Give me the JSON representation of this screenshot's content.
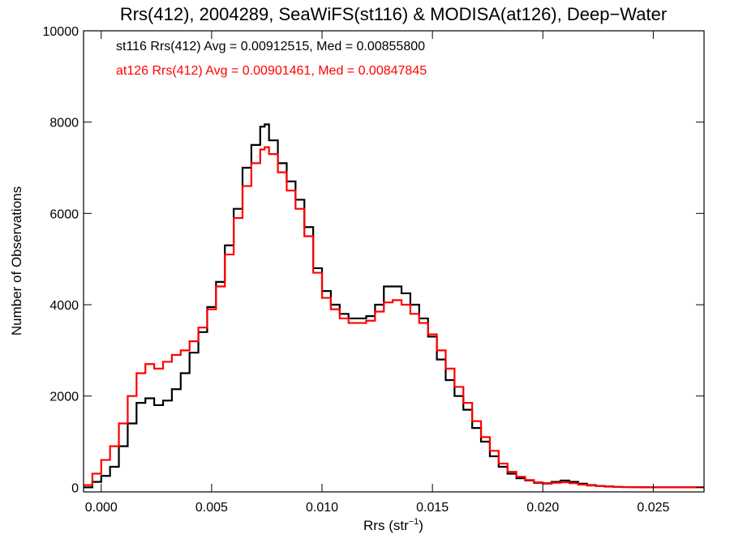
{
  "chart_data": {
    "type": "line",
    "title": "Rrs(412), 2004289, SeaWiFS(st116) & MODISA(at126), Deep−Water",
    "xlabel": "Rrs (str",
    "xlabel_sup": "−1",
    "xlabel_close": ")",
    "ylabel": "Number of Observations",
    "xlim": [
      -0.0008,
      0.0273
    ],
    "ylim": [
      -100,
      10000
    ],
    "xticks": [
      0.0,
      0.005,
      0.01,
      0.015,
      0.02,
      0.025
    ],
    "xtick_labels": [
      "0.000",
      "0.005",
      "0.010",
      "0.015",
      "0.020",
      "0.025"
    ],
    "yticks": [
      0,
      2000,
      4000,
      6000,
      8000,
      10000
    ],
    "ytick_labels": [
      "0",
      "2000",
      "4000",
      "6000",
      "8000",
      "10000"
    ],
    "grid": false,
    "legend_position": "top-left",
    "series": [
      {
        "name": "st116 Rrs(412) Avg = 0.00912515, Med = 0.00855800",
        "color": "#000000",
        "x": [
          -0.0008,
          -0.0004,
          0.0,
          0.0004,
          0.0008,
          0.0012,
          0.0016,
          0.002,
          0.0024,
          0.0028,
          0.0032,
          0.0036,
          0.004,
          0.0044,
          0.0048,
          0.0052,
          0.0056,
          0.006,
          0.0064,
          0.0068,
          0.0072,
          0.0074,
          0.0076,
          0.008,
          0.0084,
          0.0088,
          0.0092,
          0.0096,
          0.01,
          0.0104,
          0.0108,
          0.0112,
          0.0116,
          0.012,
          0.0124,
          0.0128,
          0.0132,
          0.0136,
          0.014,
          0.0144,
          0.0148,
          0.0152,
          0.0156,
          0.016,
          0.0164,
          0.0168,
          0.0172,
          0.0176,
          0.018,
          0.0184,
          0.0188,
          0.0192,
          0.0196,
          0.02,
          0.0204,
          0.0208,
          0.0212,
          0.0216,
          0.022,
          0.0224,
          0.0228,
          0.0232,
          0.0236,
          0.024,
          0.0244,
          0.0248,
          0.0252,
          0.0256,
          0.026,
          0.0264,
          0.0268,
          0.0273
        ],
        "y": [
          0,
          120,
          250,
          450,
          900,
          1400,
          1850,
          1950,
          1800,
          1900,
          2150,
          2500,
          2950,
          3400,
          3950,
          4500,
          5300,
          6100,
          7000,
          7500,
          7900,
          7950,
          7600,
          7100,
          6700,
          6300,
          5700,
          4800,
          4300,
          4000,
          3800,
          3700,
          3700,
          3750,
          4000,
          4400,
          4400,
          4250,
          4000,
          3700,
          3300,
          2800,
          2350,
          2000,
          1700,
          1300,
          1000,
          680,
          450,
          300,
          200,
          150,
          100,
          90,
          120,
          150,
          120,
          80,
          50,
          30,
          20,
          10,
          5,
          3,
          2,
          1,
          0,
          0,
          0,
          0,
          0,
          0
        ]
      },
      {
        "name": "at126 Rrs(412) Avg = 0.00901461, Med = 0.00847845",
        "color": "#ff0000",
        "x": [
          -0.0008,
          -0.0004,
          0.0,
          0.0004,
          0.0008,
          0.0012,
          0.0016,
          0.002,
          0.0024,
          0.0028,
          0.0032,
          0.0036,
          0.004,
          0.0044,
          0.0048,
          0.0052,
          0.0056,
          0.006,
          0.0064,
          0.0068,
          0.0072,
          0.0074,
          0.0076,
          0.008,
          0.0084,
          0.0088,
          0.0092,
          0.0096,
          0.01,
          0.0104,
          0.0108,
          0.0112,
          0.0116,
          0.012,
          0.0124,
          0.0128,
          0.0132,
          0.0136,
          0.014,
          0.0144,
          0.0148,
          0.0152,
          0.0156,
          0.016,
          0.0164,
          0.0168,
          0.0172,
          0.0176,
          0.018,
          0.0184,
          0.0188,
          0.0192,
          0.0196,
          0.02,
          0.0204,
          0.0208,
          0.0212,
          0.0216,
          0.022,
          0.0224,
          0.0228,
          0.0232,
          0.0236,
          0.024,
          0.0244,
          0.0248,
          0.0252,
          0.0256,
          0.026,
          0.0264,
          0.0268,
          0.0273
        ],
        "y": [
          50,
          300,
          600,
          900,
          1400,
          2000,
          2500,
          2700,
          2600,
          2750,
          2900,
          3000,
          3200,
          3500,
          3900,
          4400,
          5100,
          5900,
          6600,
          7100,
          7400,
          7450,
          7300,
          6900,
          6500,
          6100,
          5500,
          4700,
          4150,
          3900,
          3700,
          3600,
          3600,
          3650,
          3850,
          4050,
          4100,
          4000,
          3800,
          3600,
          3350,
          3000,
          2600,
          2200,
          1850,
          1450,
          1100,
          800,
          520,
          340,
          230,
          160,
          110,
          80,
          100,
          110,
          90,
          60,
          40,
          25,
          15,
          8,
          5,
          3,
          2,
          1,
          0,
          0,
          0,
          0,
          0,
          0
        ]
      }
    ]
  }
}
